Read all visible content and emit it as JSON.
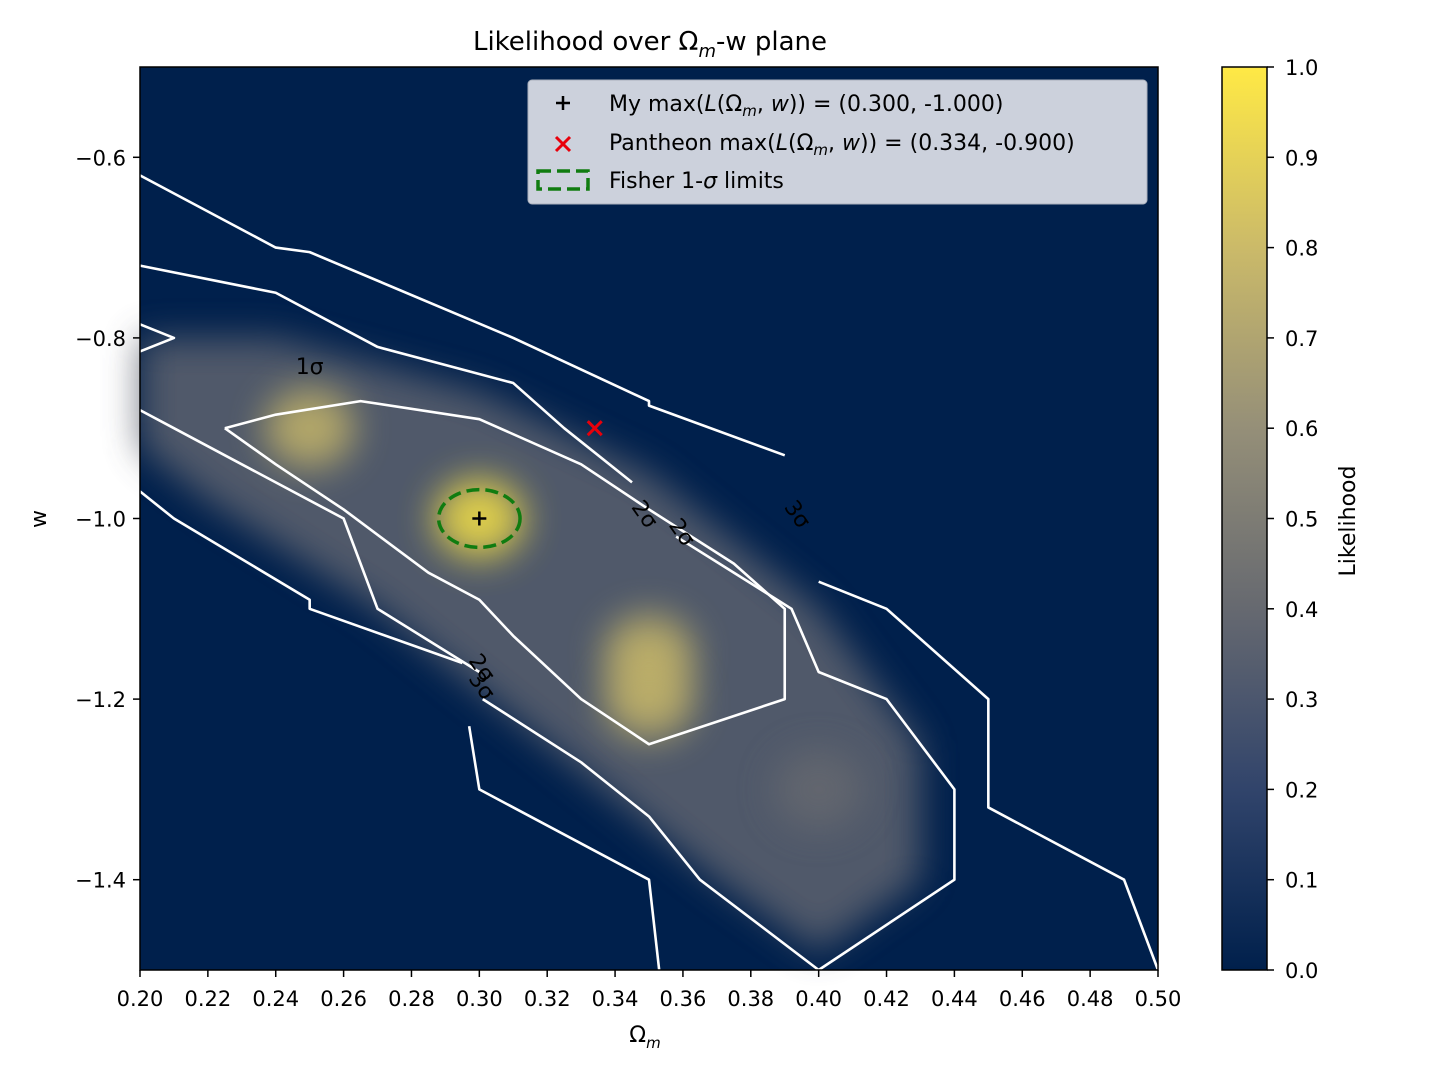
{
  "chart_data": {
    "type": "heatmap",
    "title_main": "Likelihood over Ω",
    "title_sub": "m",
    "title_tail": "-w plane",
    "xlabel_main": "Ω",
    "xlabel_sub": "m",
    "ylabel": "w",
    "xlim": [
      0.2,
      0.5
    ],
    "ylim": [
      -1.5,
      -0.5
    ],
    "x_ticks": [
      0.2,
      0.22,
      0.24,
      0.26,
      0.28,
      0.3,
      0.32,
      0.34,
      0.36,
      0.38,
      0.4,
      0.42,
      0.44,
      0.46,
      0.48,
      0.5
    ],
    "x_tick_labels": [
      "0.20",
      "0.22",
      "0.24",
      "0.26",
      "0.28",
      "0.30",
      "0.32",
      "0.34",
      "0.36",
      "0.38",
      "0.40",
      "0.42",
      "0.44",
      "0.46",
      "0.48",
      "0.50"
    ],
    "y_ticks": [
      -0.6,
      -0.8,
      -1.0,
      -1.2,
      -1.4
    ],
    "y_tick_labels": [
      "−0.6",
      "−0.8",
      "−1.0",
      "−1.2",
      "−1.4"
    ],
    "colorbar": {
      "label": "Likelihood",
      "range": [
        0.0,
        1.0
      ],
      "ticks": [
        0.0,
        0.1,
        0.2,
        0.3,
        0.4,
        0.5,
        0.6,
        0.7,
        0.8,
        0.9,
        1.0
      ],
      "tick_labels": [
        "0.0",
        "0.1",
        "0.2",
        "0.3",
        "0.4",
        "0.5",
        "0.6",
        "0.7",
        "0.8",
        "0.9",
        "1.0"
      ],
      "colormap": [
        "#00204c",
        "#31446b",
        "#666970",
        "#958f78",
        "#cbba69",
        "#ffe945"
      ]
    },
    "peaks": [
      {
        "x": 0.3,
        "y": -1.0,
        "value": 1.0
      },
      {
        "x": 0.25,
        "y": -0.9,
        "value": 0.72
      },
      {
        "x": 0.35,
        "y": -1.15,
        "value": 0.72
      },
      {
        "x": 0.35,
        "y": -1.2,
        "value": 0.7
      },
      {
        "x": 0.4,
        "y": -1.3,
        "value": 0.4
      }
    ],
    "contours": [
      {
        "level": "1σ",
        "label": "1σ",
        "label_at": [
          0.25,
          -0.84
        ],
        "points": [
          [
            0.225,
            -0.9
          ],
          [
            0.24,
            -0.885
          ],
          [
            0.265,
            -0.87
          ],
          [
            0.3,
            -0.89
          ],
          [
            0.33,
            -0.94
          ],
          [
            0.35,
            -0.99
          ],
          [
            0.375,
            -1.05
          ],
          [
            0.39,
            -1.1
          ],
          [
            0.39,
            -1.2
          ],
          [
            0.35,
            -1.25
          ],
          [
            0.33,
            -1.2
          ],
          [
            0.31,
            -1.13
          ],
          [
            0.3,
            -1.09
          ],
          [
            0.285,
            -1.06
          ],
          [
            0.26,
            -0.99
          ],
          [
            0.24,
            -0.94
          ],
          [
            0.225,
            -0.9
          ]
        ]
      },
      {
        "level": "2σ",
        "label": "2σ",
        "label_at": [
          0.347,
          -1.0
        ],
        "points": [
          [
            0.2,
            -0.72
          ],
          [
            0.24,
            -0.75
          ],
          [
            0.27,
            -0.81
          ],
          [
            0.31,
            -0.85
          ],
          [
            0.325,
            -0.9
          ],
          [
            0.345,
            -0.96
          ]
        ]
      },
      {
        "level": "2σ",
        "label": "2σ",
        "label_at": [
          0.358,
          -1.02
        ],
        "points": [
          [
            0.358,
            -1.02
          ],
          [
            0.392,
            -1.1
          ],
          [
            0.4,
            -1.17
          ],
          [
            0.42,
            -1.2
          ],
          [
            0.44,
            -1.3
          ],
          [
            0.44,
            -1.4
          ],
          [
            0.4,
            -1.5
          ]
        ]
      },
      {
        "level": "2σ",
        "label": "2σ",
        "label_at": [
          0.299,
          -1.17
        ],
        "points": [
          [
            0.2,
            -0.88
          ],
          [
            0.21,
            -0.9
          ],
          [
            0.26,
            -1.0
          ],
          [
            0.27,
            -1.1
          ],
          [
            0.3,
            -1.17
          ]
        ]
      },
      {
        "level": "2σ",
        "label": "",
        "label_at": null,
        "points": [
          [
            0.301,
            -1.2
          ],
          [
            0.33,
            -1.27
          ],
          [
            0.35,
            -1.33
          ],
          [
            0.365,
            -1.4
          ],
          [
            0.4,
            -1.5
          ]
        ]
      },
      {
        "level": "3σ",
        "label": "3σ",
        "label_at": [
          0.392,
          -1.0
        ],
        "points": [
          [
            0.2,
            -0.62
          ],
          [
            0.24,
            -0.7
          ],
          [
            0.25,
            -0.705
          ],
          [
            0.31,
            -0.8
          ],
          [
            0.35,
            -0.87
          ],
          [
            0.35,
            -0.875
          ],
          [
            0.39,
            -0.93
          ]
        ]
      },
      {
        "level": "3σ",
        "label": "3σ",
        "label_at": [
          0.392,
          -1.0
        ],
        "points": [
          [
            0.4,
            -1.07
          ],
          [
            0.42,
            -1.1
          ],
          [
            0.45,
            -1.2
          ],
          [
            0.45,
            -1.32
          ],
          [
            0.49,
            -1.4
          ],
          [
            0.5,
            -1.5
          ]
        ]
      },
      {
        "level": "3σ",
        "label": "3σ",
        "label_at": [
          0.299,
          -1.19
        ],
        "points": [
          [
            0.2,
            -0.97
          ],
          [
            0.21,
            -1.0
          ],
          [
            0.25,
            -1.09
          ],
          [
            0.25,
            -1.1
          ],
          [
            0.295,
            -1.16
          ]
        ]
      },
      {
        "level": "3σ",
        "label": "",
        "label_at": null,
        "points": [
          [
            0.297,
            -1.23
          ],
          [
            0.3,
            -1.3
          ],
          [
            0.35,
            -1.4
          ],
          [
            0.353,
            -1.5
          ]
        ]
      },
      {
        "level": "3σ",
        "label": "",
        "label_at": null,
        "points": [
          [
            0.2,
            -0.785
          ],
          [
            0.21,
            -0.8
          ],
          [
            0.2,
            -0.815
          ]
        ]
      }
    ],
    "markers": [
      {
        "name": "my-max",
        "x": 0.3,
        "y": -1.0,
        "symbol": "+",
        "color": "#000000"
      },
      {
        "name": "pantheon-max",
        "x": 0.334,
        "y": -0.9,
        "symbol": "x",
        "color": "#e8000b"
      }
    ],
    "fisher_ellipse": {
      "center": [
        0.3,
        -1.0
      ],
      "rx": 0.012,
      "ry": 0.032,
      "color": "#107c10"
    },
    "contour_color": "#ffffff",
    "legend": {
      "position": "top-right",
      "entries": [
        {
          "prefix": "My max(",
          "math": "L(Ω_m, w)",
          "suffix": ") = (0.300, -1.000)"
        },
        {
          "prefix": "Pantheon max(",
          "math": "L(Ω_m, w)",
          "suffix": ") = (0.334, -0.900)"
        },
        {
          "prefix": "Fisher 1-",
          "math": "σ",
          "suffix": " limits"
        }
      ]
    }
  }
}
